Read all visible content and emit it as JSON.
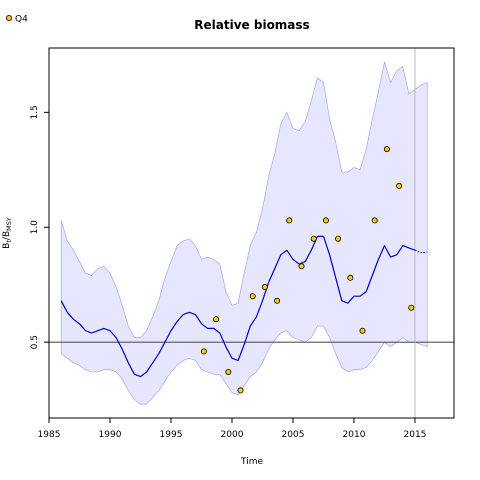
{
  "chart_data": {
    "type": "line",
    "title": "Relative biomass",
    "xlabel": "Time",
    "ylabel": "B",
    "ylabel_sub": "t",
    "ylabel_mid": "/B",
    "ylabel_sub2": "MSY",
    "xlim": [
      1985,
      2018.2
    ],
    "ylim": [
      0.17,
      1.78
    ],
    "xticks": [
      1985,
      1990,
      1995,
      2000,
      2005,
      2010,
      2015
    ],
    "xtick_labels": [
      "1985",
      "1990",
      "1995",
      "2000",
      "2005",
      "2010",
      "2015"
    ],
    "yticks": [
      0.5,
      1.0,
      1.5
    ],
    "ytick_labels": [
      "0.5",
      "1.0",
      "1.5"
    ],
    "reference_line": 0.5,
    "vertical_line": 2015,
    "legend": {
      "label": "Q4",
      "position": "top-left"
    },
    "colors": {
      "band": "#e6e6ff",
      "band_edge": "#9999ee",
      "line": "#0000cc",
      "point_fill": "#ffcc00",
      "reference": "#555555",
      "vline": "#bbbbbb"
    },
    "series": [
      {
        "role": "estimate",
        "x": [
          1986,
          1986.5,
          1987,
          1987.5,
          1988,
          1988.5,
          1989,
          1989.5,
          1990,
          1990.5,
          1991,
          1991.5,
          1992,
          1992.5,
          1993,
          1993.5,
          1994,
          1994.5,
          1995,
          1995.5,
          1996,
          1996.5,
          1997,
          1997.5,
          1998,
          1998.5,
          1999,
          1999.5,
          2000,
          2000.5,
          2001,
          2001.5,
          2002,
          2002.5,
          2003,
          2003.5,
          2004,
          2004.5,
          2005,
          2005.5,
          2006,
          2006.5,
          2007,
          2007.5,
          2008,
          2008.5,
          2009,
          2009.5,
          2010,
          2010.5,
          2011,
          2011.5,
          2012,
          2012.5,
          2013,
          2013.5,
          2014,
          2014.5,
          2015
        ],
        "values": [
          0.68,
          0.63,
          0.6,
          0.58,
          0.55,
          0.54,
          0.55,
          0.56,
          0.55,
          0.52,
          0.47,
          0.41,
          0.36,
          0.35,
          0.37,
          0.41,
          0.45,
          0.5,
          0.55,
          0.59,
          0.62,
          0.63,
          0.62,
          0.58,
          0.56,
          0.56,
          0.54,
          0.48,
          0.43,
          0.42,
          0.49,
          0.57,
          0.61,
          0.68,
          0.76,
          0.82,
          0.88,
          0.9,
          0.86,
          0.84,
          0.85,
          0.9,
          0.96,
          0.96,
          0.88,
          0.78,
          0.68,
          0.67,
          0.7,
          0.7,
          0.72,
          0.79,
          0.86,
          0.92,
          0.87,
          0.88,
          0.92,
          0.91,
          0.9
        ]
      },
      {
        "role": "projection",
        "x": [
          2015,
          2015.5,
          2016
        ],
        "values": [
          0.9,
          0.89,
          0.89
        ]
      },
      {
        "role": "upper",
        "x": [
          1986,
          1986.5,
          1987,
          1987.5,
          1988,
          1988.5,
          1989,
          1989.5,
          1990,
          1990.5,
          1991,
          1991.5,
          1992,
          1992.5,
          1993,
          1993.5,
          1994,
          1994.5,
          1995,
          1995.5,
          1996,
          1996.5,
          1997,
          1997.5,
          1998,
          1998.5,
          1999,
          1999.5,
          2000,
          2000.5,
          2001,
          2001.5,
          2002,
          2002.5,
          2003,
          2003.5,
          2004,
          2004.5,
          2005,
          2005.5,
          2006,
          2006.5,
          2007,
          2007.5,
          2008,
          2008.5,
          2009,
          2009.5,
          2010,
          2010.5,
          2011,
          2011.5,
          2012,
          2012.5,
          2013,
          2013.5,
          2014,
          2014.5,
          2015,
          2015.5,
          2016
        ],
        "values": [
          1.03,
          0.94,
          0.9,
          0.85,
          0.8,
          0.79,
          0.82,
          0.83,
          0.8,
          0.74,
          0.66,
          0.57,
          0.52,
          0.52,
          0.55,
          0.61,
          0.68,
          0.78,
          0.85,
          0.92,
          0.94,
          0.95,
          0.92,
          0.86,
          0.87,
          0.86,
          0.84,
          0.72,
          0.66,
          0.67,
          0.8,
          0.92,
          0.98,
          1.08,
          1.22,
          1.32,
          1.45,
          1.5,
          1.43,
          1.42,
          1.46,
          1.55,
          1.65,
          1.63,
          1.47,
          1.37,
          1.24,
          1.24,
          1.26,
          1.25,
          1.34,
          1.47,
          1.59,
          1.72,
          1.63,
          1.68,
          1.7,
          1.58,
          1.6,
          1.62,
          1.63
        ]
      },
      {
        "role": "lower",
        "x": [
          1986,
          1986.5,
          1987,
          1987.5,
          1988,
          1988.5,
          1989,
          1989.5,
          1990,
          1990.5,
          1991,
          1991.5,
          1992,
          1992.5,
          1993,
          1993.5,
          1994,
          1994.5,
          1995,
          1995.5,
          1996,
          1996.5,
          1997,
          1997.5,
          1998,
          1998.5,
          1999,
          1999.5,
          2000,
          2000.5,
          2001,
          2001.5,
          2002,
          2002.5,
          2003,
          2003.5,
          2004,
          2004.5,
          2005,
          2005.5,
          2006,
          2006.5,
          2007,
          2007.5,
          2008,
          2008.5,
          2009,
          2009.5,
          2010,
          2010.5,
          2011,
          2011.5,
          2012,
          2012.5,
          2013,
          2013.5,
          2014,
          2014.5,
          2015,
          2015.5,
          2016
        ],
        "values": [
          0.45,
          0.43,
          0.41,
          0.4,
          0.38,
          0.37,
          0.37,
          0.38,
          0.38,
          0.37,
          0.34,
          0.29,
          0.25,
          0.23,
          0.23,
          0.26,
          0.29,
          0.33,
          0.37,
          0.4,
          0.42,
          0.43,
          0.42,
          0.38,
          0.37,
          0.36,
          0.36,
          0.32,
          0.28,
          0.27,
          0.31,
          0.35,
          0.37,
          0.41,
          0.47,
          0.51,
          0.54,
          0.55,
          0.52,
          0.51,
          0.5,
          0.52,
          0.57,
          0.57,
          0.52,
          0.45,
          0.39,
          0.37,
          0.38,
          0.38,
          0.39,
          0.42,
          0.46,
          0.5,
          0.48,
          0.5,
          0.52,
          0.5,
          0.5,
          0.49,
          0.48
        ]
      },
      {
        "role": "observations",
        "name": "Q4",
        "x": [
          1997.7,
          1998.7,
          1999.7,
          2000.7,
          2001.7,
          2002.7,
          2003.7,
          2004.7,
          2005.7,
          2006.7,
          2007.7,
          2008.7,
          2009.7,
          2010.7,
          2011.7,
          2012.7,
          2013.7,
          2014.7
        ],
        "values": [
          0.46,
          0.6,
          0.37,
          0.29,
          0.7,
          0.74,
          0.68,
          1.03,
          0.83,
          0.95,
          1.03,
          0.95,
          0.78,
          0.55,
          1.03,
          1.34,
          1.18,
          0.65
        ]
      }
    ]
  }
}
